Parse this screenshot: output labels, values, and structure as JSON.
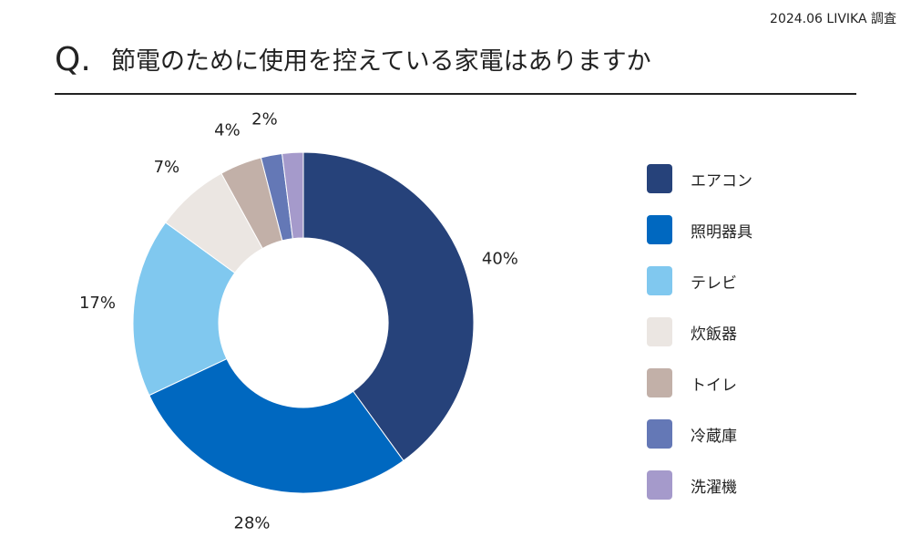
{
  "source": "2024.06 LIVIKA 調査",
  "question_mark": "Q.",
  "question": "節電のために使用を控えている家電はありますか",
  "chart_data": {
    "type": "pie",
    "donut": true,
    "categories": [
      "エアコン",
      "照明器具",
      "テレビ",
      "炊飯器",
      "トイレ",
      "冷蔵庫",
      "洗濯機"
    ],
    "values": [
      40,
      28,
      17,
      7,
      4,
      2,
      2
    ],
    "unit": "%",
    "labels": [
      "40%",
      "28%",
      "17%",
      "7%",
      "4%",
      "2%",
      ""
    ],
    "colors": [
      "#26427a",
      "#0068c0",
      "#80c8ef",
      "#ebe6e2",
      "#c2b0a8",
      "#6478b6",
      "#a59acb"
    ],
    "legend_position": "right"
  }
}
